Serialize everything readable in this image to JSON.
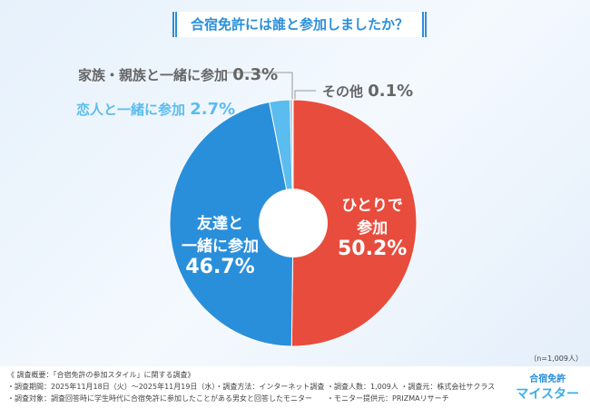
{
  "title": "合宿免許には誰と参加しましたか？",
  "chart_data": {
    "type": "pie",
    "donut": true,
    "title": "合宿免許には誰と参加しましたか？",
    "slices": [
      {
        "label": "ひとりで参加",
        "value": 50.2,
        "display": "50.2%",
        "color": "#e84c3d"
      },
      {
        "label": "友達と一緒に参加",
        "value": 46.7,
        "display": "46.7%",
        "color": "#2a8fdb"
      },
      {
        "label": "恋人と一緒に参加",
        "value": 2.7,
        "display": "2.7%",
        "color": "#5bbcf0"
      },
      {
        "label": "家族・親族と一緒に参加",
        "value": 0.3,
        "display": "0.3%",
        "color": "#aaaaaa"
      },
      {
        "label": "その他",
        "value": 0.1,
        "display": "0.1%",
        "color": "#cccccc"
      }
    ]
  },
  "labels": {
    "alone1": "ひとりで",
    "alone2": "参加",
    "friends1": "友達と",
    "friends2": "一緒に参加"
  },
  "n": "（n=1,009人）",
  "footer": [
    "《 調査概要：「合宿免許の参加スタイル」に関する調査》",
    "・調査期間：2025年11月18日（火）～2025年11月19日（水）・調査方法：インターネット調査 ・調査人数：1,009人 ・調査元：株式会社サクラス",
    "・調査対象：調査回答時に学生時代に合宿免許に参加したことがある男女と回答したモニター　　・モニター提供元：PRIZMAリサーチ"
  ],
  "logo": {
    "line1": "合宿免許",
    "line2": "マイスター"
  }
}
